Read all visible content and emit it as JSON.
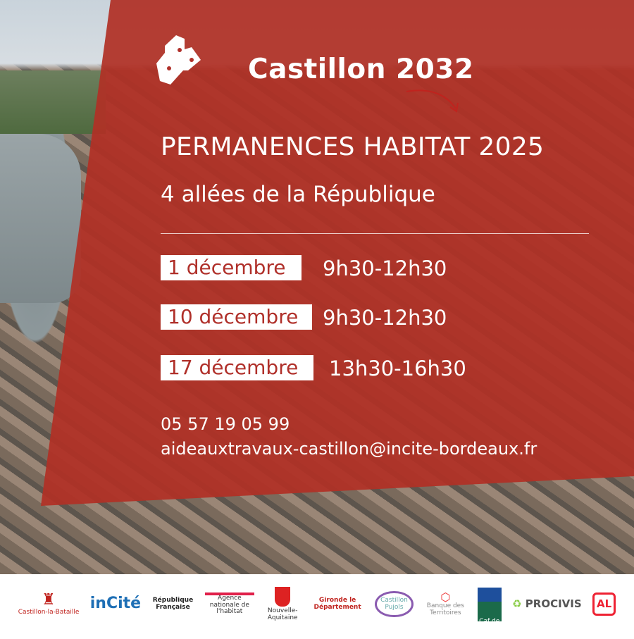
{
  "brand": {
    "name": "Castillon 2032"
  },
  "title": "PERMANENCES HABITAT 2025",
  "address": "4 allées de la République",
  "sessions": [
    {
      "date": "1 décembre",
      "time": "9h30-12h30"
    },
    {
      "date": "10 décembre",
      "time": "9h30-12h30"
    },
    {
      "date": "17 décembre",
      "time": "13h30-16h30"
    }
  ],
  "contact": {
    "phone": "05 57 19 05 99",
    "email": "aideauxtravaux-castillon@incite-bordeaux.fr"
  },
  "colors": {
    "panel": "#b0302a",
    "text": "#ffffff"
  },
  "partners": [
    "Castillon-la-Bataille",
    "inCité",
    "République Française",
    "Agence nationale de l'habitat",
    "Nouvelle-Aquitaine",
    "Gironde le Département",
    "Castillon Pujols",
    "Banque des Territoires",
    "Caf de la Gironde",
    "PROCIVIS",
    "AL"
  ]
}
